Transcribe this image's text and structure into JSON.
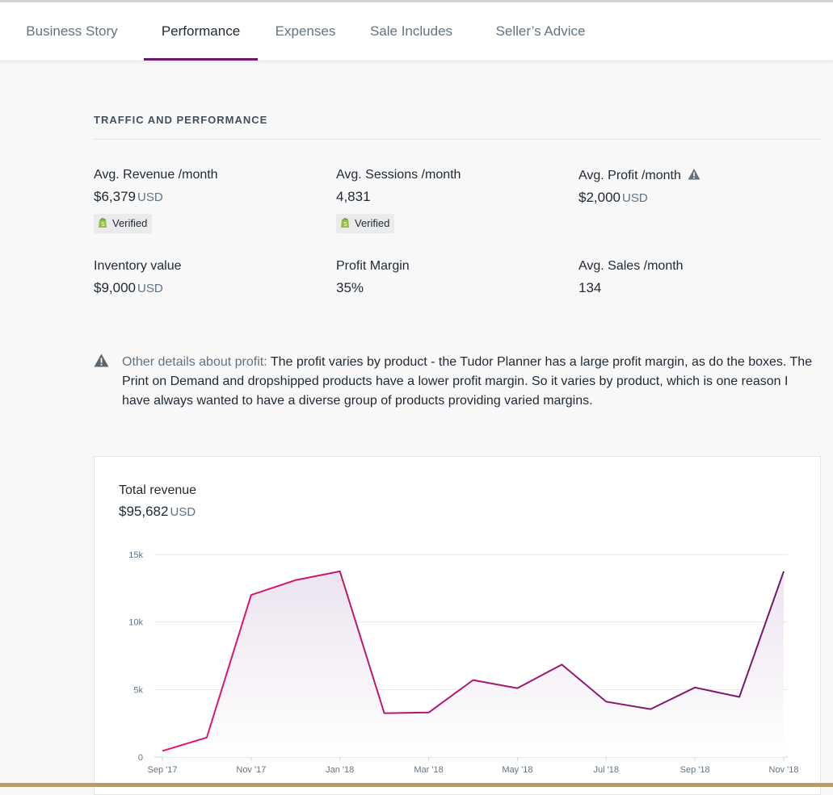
{
  "tabs": [
    {
      "label": "Business Story",
      "active": false
    },
    {
      "label": "Performance",
      "active": true
    },
    {
      "label": "Expenses",
      "active": false
    },
    {
      "label": "Sale Includes",
      "active": false
    },
    {
      "label": "Seller’s Advice",
      "active": false
    }
  ],
  "section": {
    "title": "TRAFFIC AND PERFORMANCE"
  },
  "metrics": {
    "revenue": {
      "label": "Avg. Revenue /month",
      "value": "$6,379",
      "unit": "USD",
      "badge": "Verified"
    },
    "sessions": {
      "label": "Avg. Sessions /month",
      "value": "4,831",
      "badge": "Verified"
    },
    "profit": {
      "label": "Avg. Profit /month",
      "value": "$2,000",
      "unit": "USD",
      "icon": "warning-icon"
    },
    "inventory": {
      "label": "Inventory value",
      "value": "$9,000",
      "unit": "USD"
    },
    "margin": {
      "label": "Profit Margin",
      "value": "35%"
    },
    "sales": {
      "label": "Avg. Sales /month",
      "value": "134"
    }
  },
  "note": {
    "icon": "warning-icon",
    "lead": "Other details about profit:",
    "text": " The profit varies by product - the Tudor Planner has a large profit margin, as do the boxes. The Print on Demand and dropshipped products have a lower profit margin. So it varies by product, which is one reason I have always wanted to have a diverse group of products providing varied margins."
  },
  "revenue_card": {
    "title": "Total revenue",
    "value": "$95,682",
    "unit": "USD"
  },
  "colors": {
    "accent": "#6b1b6b",
    "line_start": "#e8156f",
    "line_end": "#6e1a66",
    "fill": "#ece4ef",
    "verified_green": "#95bf47",
    "icon_gray": "#637381"
  },
  "chart_data": {
    "type": "area",
    "title": "Total revenue",
    "x": [
      "Sep '17",
      "Oct '17",
      "Nov '17",
      "Dec '17",
      "Jan '18",
      "Feb '18",
      "Mar '18",
      "Apr '18",
      "May '18",
      "Jun '18",
      "Jul '18",
      "Aug '18",
      "Sep '18",
      "Oct '18",
      "Nov '18"
    ],
    "xtick_labels": [
      "Sep '17",
      "Nov '17",
      "Jan '18",
      "Mar '18",
      "May '18",
      "Jul '18",
      "Sep '18",
      "Nov '18"
    ],
    "series": [
      {
        "values": [
          450,
          1450,
          12000,
          13100,
          13750,
          3250,
          3300,
          5700,
          5100,
          6850,
          4100,
          3550,
          5150,
          4450,
          13750
        ]
      }
    ],
    "yticks": [
      0,
      5000,
      10000,
      15000
    ],
    "ytick_labels": [
      "0",
      "5k",
      "10k",
      "15k"
    ],
    "ylim": [
      0,
      15000
    ],
    "grid": true,
    "legend": "none"
  }
}
